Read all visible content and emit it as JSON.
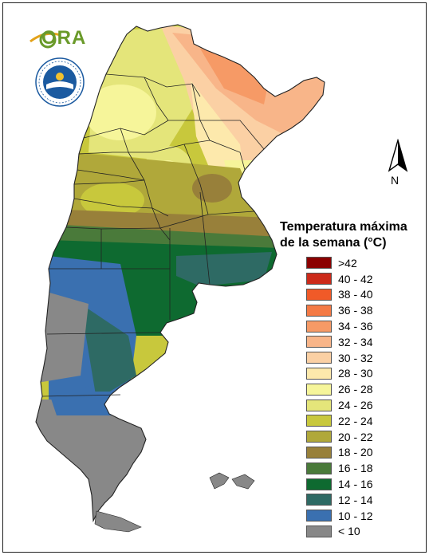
{
  "logo": {
    "text": "ORA",
    "seal_text": "SERVICIO METEOROLÓGICO NACIONAL · ARGENTINA"
  },
  "compass": {
    "label": "N"
  },
  "legend": {
    "title_line1": "Temperatura máxima",
    "title_line2": "de la semana (°C)",
    "items": [
      {
        "label": ">42",
        "color": "#8b0000"
      },
      {
        "label": "40 - 42",
        "color": "#cc2a1a"
      },
      {
        "label": "38 - 40",
        "color": "#f05a28"
      },
      {
        "label": "36 - 38",
        "color": "#f47a45"
      },
      {
        "label": "34 - 36",
        "color": "#f69a66"
      },
      {
        "label": "32 - 34",
        "color": "#f8b589"
      },
      {
        "label": "30 - 32",
        "color": "#fbd0a4"
      },
      {
        "label": "28 - 30",
        "color": "#fde9ac"
      },
      {
        "label": "26 - 28",
        "color": "#f6f59a"
      },
      {
        "label": "24 - 26",
        "color": "#e4e57a"
      },
      {
        "label": "22 - 24",
        "color": "#c8c83c"
      },
      {
        "label": "20 - 22",
        "color": "#b0a83a"
      },
      {
        "label": "18 - 20",
        "color": "#98803a"
      },
      {
        "label": "16 - 18",
        "color": "#4a7a3a"
      },
      {
        "label": "14 - 16",
        "color": "#0e6a30"
      },
      {
        "label": "12 - 14",
        "color": "#2e6a64"
      },
      {
        "label": "10 - 12",
        "color": "#3a70b0"
      },
      {
        "label": "< 10",
        "color": "#888888"
      }
    ]
  }
}
